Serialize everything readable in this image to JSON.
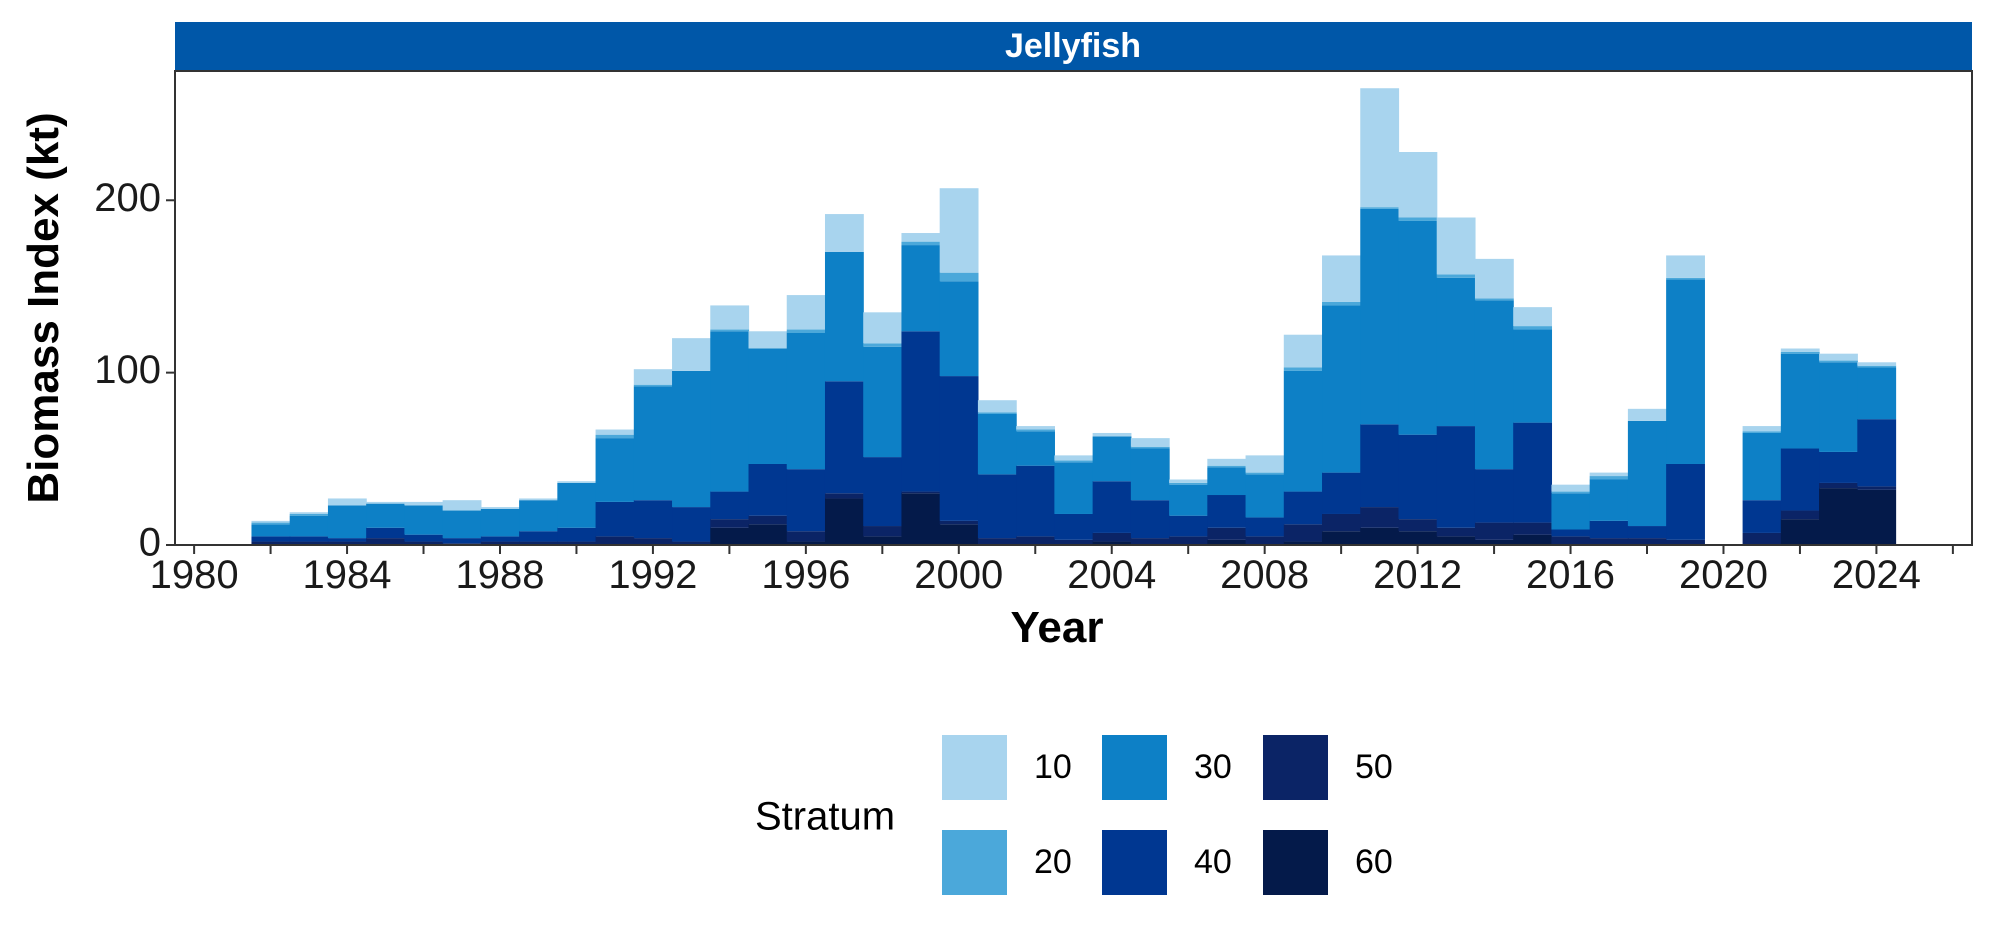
{
  "chart_data": {
    "type": "bar",
    "stacked": true,
    "panel_title": "Jellyfish",
    "xlabel": "Year",
    "ylabel": "Biomass Index (kt)",
    "xlim": [
      1979.5,
      2026.5
    ],
    "ylim": [
      0,
      275
    ],
    "x_ticks": [
      1980,
      1984,
      1988,
      1992,
      1996,
      2000,
      2004,
      2008,
      2012,
      2016,
      2020,
      2024
    ],
    "y_ticks": [
      0,
      100,
      200
    ],
    "legend": {
      "title": "Stratum",
      "placement": "bottom"
    },
    "x": [
      1982,
      1983,
      1984,
      1985,
      1986,
      1987,
      1988,
      1989,
      1990,
      1991,
      1992,
      1993,
      1994,
      1995,
      1996,
      1997,
      1998,
      1999,
      2000,
      2001,
      2002,
      2003,
      2004,
      2005,
      2006,
      2007,
      2008,
      2009,
      2010,
      2011,
      2012,
      2013,
      2014,
      2015,
      2016,
      2017,
      2018,
      2019,
      2021,
      2022,
      2023,
      2024
    ],
    "series": [
      {
        "name": "60",
        "color": "#041A4A",
        "values": [
          0,
          0,
          0,
          0,
          0,
          0,
          0,
          0,
          0,
          0,
          0,
          0,
          10,
          12,
          2,
          27,
          5,
          30,
          12,
          0,
          0,
          0,
          2,
          0,
          0,
          3,
          0,
          2,
          8,
          10,
          8,
          5,
          3,
          6,
          0,
          0,
          0,
          0,
          0,
          15,
          33,
          32
        ]
      },
      {
        "name": "50",
        "color": "#0B2466",
        "values": [
          2,
          2,
          2,
          4,
          2,
          1,
          2,
          2,
          2,
          5,
          4,
          2,
          5,
          5,
          6,
          3,
          6,
          1,
          2,
          4,
          5,
          3,
          5,
          4,
          5,
          7,
          5,
          10,
          10,
          12,
          7,
          5,
          10,
          7,
          5,
          4,
          4,
          3,
          7,
          5,
          3,
          2
        ]
      },
      {
        "name": "40",
        "color": "#003791",
        "values": [
          3,
          3,
          2,
          6,
          4,
          3,
          3,
          6,
          8,
          20,
          22,
          20,
          16,
          30,
          36,
          65,
          40,
          93,
          84,
          37,
          41,
          15,
          30,
          22,
          12,
          19,
          11,
          19,
          24,
          48,
          49,
          59,
          31,
          58,
          4,
          10,
          7,
          44,
          19,
          36,
          18,
          39
        ]
      },
      {
        "name": "30",
        "color": "#0D80C6",
        "values": [
          7,
          12,
          19,
          14,
          17,
          16,
          16,
          18,
          26,
          37,
          66,
          79,
          93,
          67,
          79,
          75,
          64,
          50,
          55,
          35,
          20,
          30,
          26,
          30,
          18,
          16,
          25,
          70,
          97,
          125,
          124,
          86,
          98,
          54,
          21,
          24,
          61,
          107,
          39,
          55,
          52,
          30
        ]
      },
      {
        "name": "20",
        "color": "#4BA8DA",
        "values": [
          1,
          1,
          0,
          0,
          0,
          0,
          0,
          0,
          0,
          2,
          1,
          0,
          1,
          0,
          2,
          0,
          2,
          2,
          5,
          1,
          1,
          1,
          0,
          1,
          1,
          1,
          1,
          2,
          2,
          1,
          2,
          2,
          1,
          2,
          1,
          2,
          0,
          1,
          1,
          1,
          1,
          1
        ]
      },
      {
        "name": "10",
        "color": "#A8D4EE",
        "values": [
          1,
          1,
          4,
          1,
          2,
          6,
          1,
          1,
          1,
          3,
          9,
          19,
          14,
          10,
          20,
          22,
          18,
          5,
          49,
          7,
          2,
          3,
          2,
          5,
          2,
          4,
          10,
          19,
          27,
          69,
          38,
          33,
          23,
          11,
          4,
          2,
          7,
          13,
          3,
          2,
          4,
          2
        ]
      }
    ]
  }
}
